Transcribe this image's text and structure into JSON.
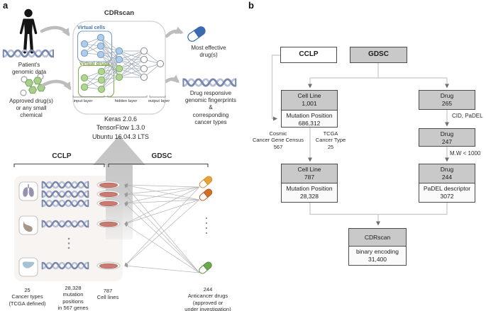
{
  "figure": {
    "panel_a_label": "a",
    "panel_b_label": "b"
  },
  "panel_a": {
    "model": {
      "title": "CDRscan",
      "virtual_cells_label": "Virtual cells",
      "virtual_drugs_label": "Virtual drugs",
      "input_layer_label": "input layer",
      "hidden_layer_label": "hidden layer",
      "output_layer_label": "output layer",
      "stack_lines": "Keras 2.0.6\nTensorFlow 1.3.0\nUbuntu 16.04.3 LTS"
    },
    "left_inputs": [
      {
        "icon": "person-icon",
        "label": "Patient's\ngenomic data"
      },
      {
        "icon": "molecule-icon",
        "label": "Approved drug(s)\nor any small\nchemical"
      }
    ],
    "right_outputs": [
      {
        "icon": "capsule-icon",
        "label": "Most effective\ndrug(s)"
      },
      {
        "icon": "dna-icon",
        "label": "Drug responsive\ngenomic fingerprints\n&\ncorresponding\ncancer types"
      }
    ],
    "dataset_brackets": {
      "cclp": "CCLP",
      "gdsc": "GDSC"
    },
    "stats": [
      {
        "value": "25",
        "label": "Cancer types\n(TCGA defined)"
      },
      {
        "value": "28,328",
        "label": "mutation\npositions\nin 567 genes"
      },
      {
        "value": "787",
        "label": "Cell lines"
      },
      {
        "value": "244",
        "label": "Anticancer drugs\n(approved or\nunder investigation)"
      }
    ]
  },
  "panel_b": {
    "source_cclp": "CCLP",
    "source_gdsc": "GDSC",
    "cell_line_1": {
      "title": "Cell Line",
      "value": "1,001",
      "sub_title": "Mutation Position",
      "sub_value": "686,312"
    },
    "drug_1": {
      "title": "Drug",
      "value": "265"
    },
    "drug_2": {
      "title": "Drug",
      "value": "247"
    },
    "cell_line_2": {
      "title": "Cell Line",
      "value": "787",
      "sub_title": "Mutation Position",
      "sub_value": "28,328"
    },
    "drug_3": {
      "title": "Drug",
      "value": "244",
      "sub_title": "PaDEL descriptor",
      "sub_value": "3072"
    },
    "cdrscan": {
      "title": "CDRscan",
      "sub_title": "binary encoding",
      "sub_value": "31,400"
    },
    "edge_labels": {
      "cosmic": "Cosmic\nCancer Gene Census\n567",
      "tcga": "TCGA\nCancer Type\n25",
      "cid_padel": "CID, PaDEL",
      "mw_filter": "M.W < 1000"
    },
    "accent_colors": {
      "box_gray": "#c9c9c9",
      "node_blue": "#aecbea",
      "node_green": "#afd593",
      "capsule_yellow": "#e8a33b",
      "capsule_orange": "#d26f28",
      "capsule_green": "#6ca84f",
      "dish_red": "#c97b72",
      "pill_blue": "#3a6ab0"
    }
  }
}
